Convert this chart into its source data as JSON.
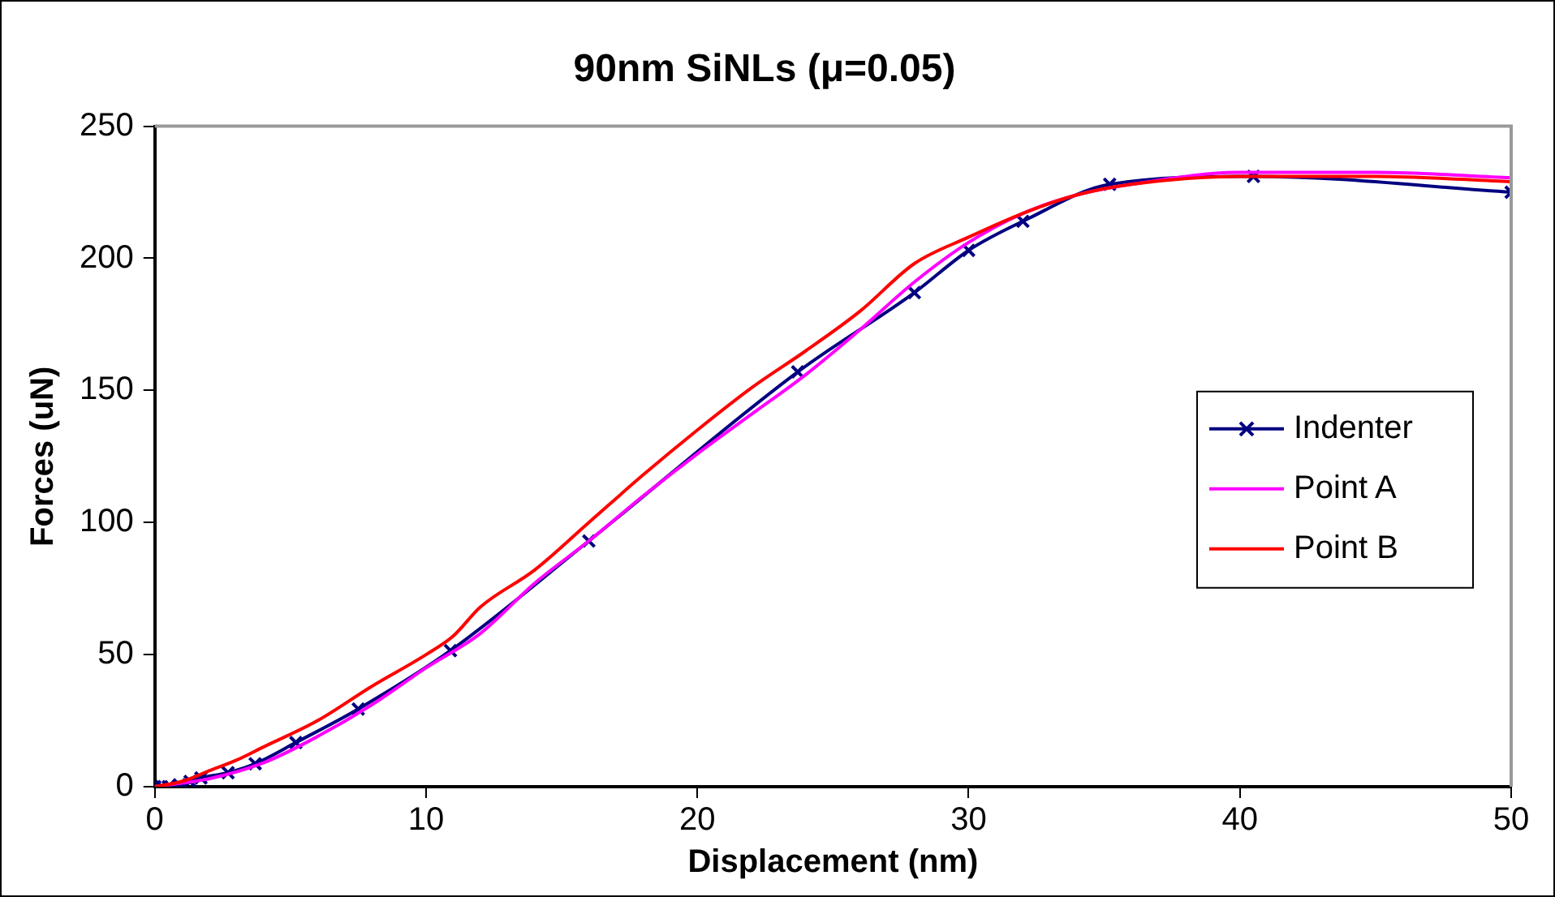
{
  "chart_data": {
    "type": "line",
    "title": "90nm SiNLs (μ=0.05)",
    "xlabel": "Displacement (nm)",
    "ylabel": "Forces (uN)",
    "xlim": [
      0,
      50
    ],
    "xticks": [
      0,
      10,
      20,
      30,
      40,
      50
    ],
    "ylim": [
      0,
      250
    ],
    "yticks": [
      0,
      50,
      100,
      150,
      200,
      250
    ],
    "grid": false,
    "legend": "right",
    "line_style": "solid",
    "series": [
      {
        "name": "Indenter",
        "color": "#000080",
        "marker": "cross",
        "x": [
          0,
          0.25,
          0.5,
          0.9,
          1.3,
          1.7,
          2.7,
          3.7,
          5.2,
          7.5,
          10.9,
          16,
          23.7,
          28,
          30,
          32,
          35.2,
          40.5,
          50
        ],
        "values": [
          0,
          0,
          0,
          0.7,
          2,
          3.3,
          5.3,
          8.7,
          16.7,
          29.4,
          51.5,
          93,
          157,
          187,
          203,
          214,
          228,
          231,
          225
        ]
      },
      {
        "name": "Point A",
        "color": "#ff00ff",
        "marker": "none",
        "x": [
          0,
          2,
          4,
          6,
          8,
          10,
          12,
          14,
          16,
          18,
          20,
          22,
          24,
          26,
          28,
          30,
          32,
          34,
          36,
          40,
          45,
          50
        ],
        "values": [
          0,
          3,
          9,
          19,
          31,
          45,
          58,
          77,
          93,
          110,
          126,
          141,
          156,
          173,
          191,
          206,
          217,
          224,
          228,
          232.5,
          232.5,
          230.5
        ]
      },
      {
        "name": "Point B",
        "color": "#ff0000",
        "marker": "none",
        "x": [
          0,
          1,
          2,
          3,
          4,
          6,
          8,
          10,
          11,
          12,
          14,
          16,
          18,
          20,
          22,
          24,
          26,
          28,
          30,
          32,
          34,
          36,
          40,
          45,
          50
        ],
        "values": [
          0,
          2,
          6,
          10,
          15,
          25,
          38,
          50,
          57,
          68,
          82,
          100,
          118,
          135,
          151,
          165,
          180,
          198,
          208,
          217,
          224,
          228,
          231,
          231,
          229
        ]
      }
    ]
  }
}
